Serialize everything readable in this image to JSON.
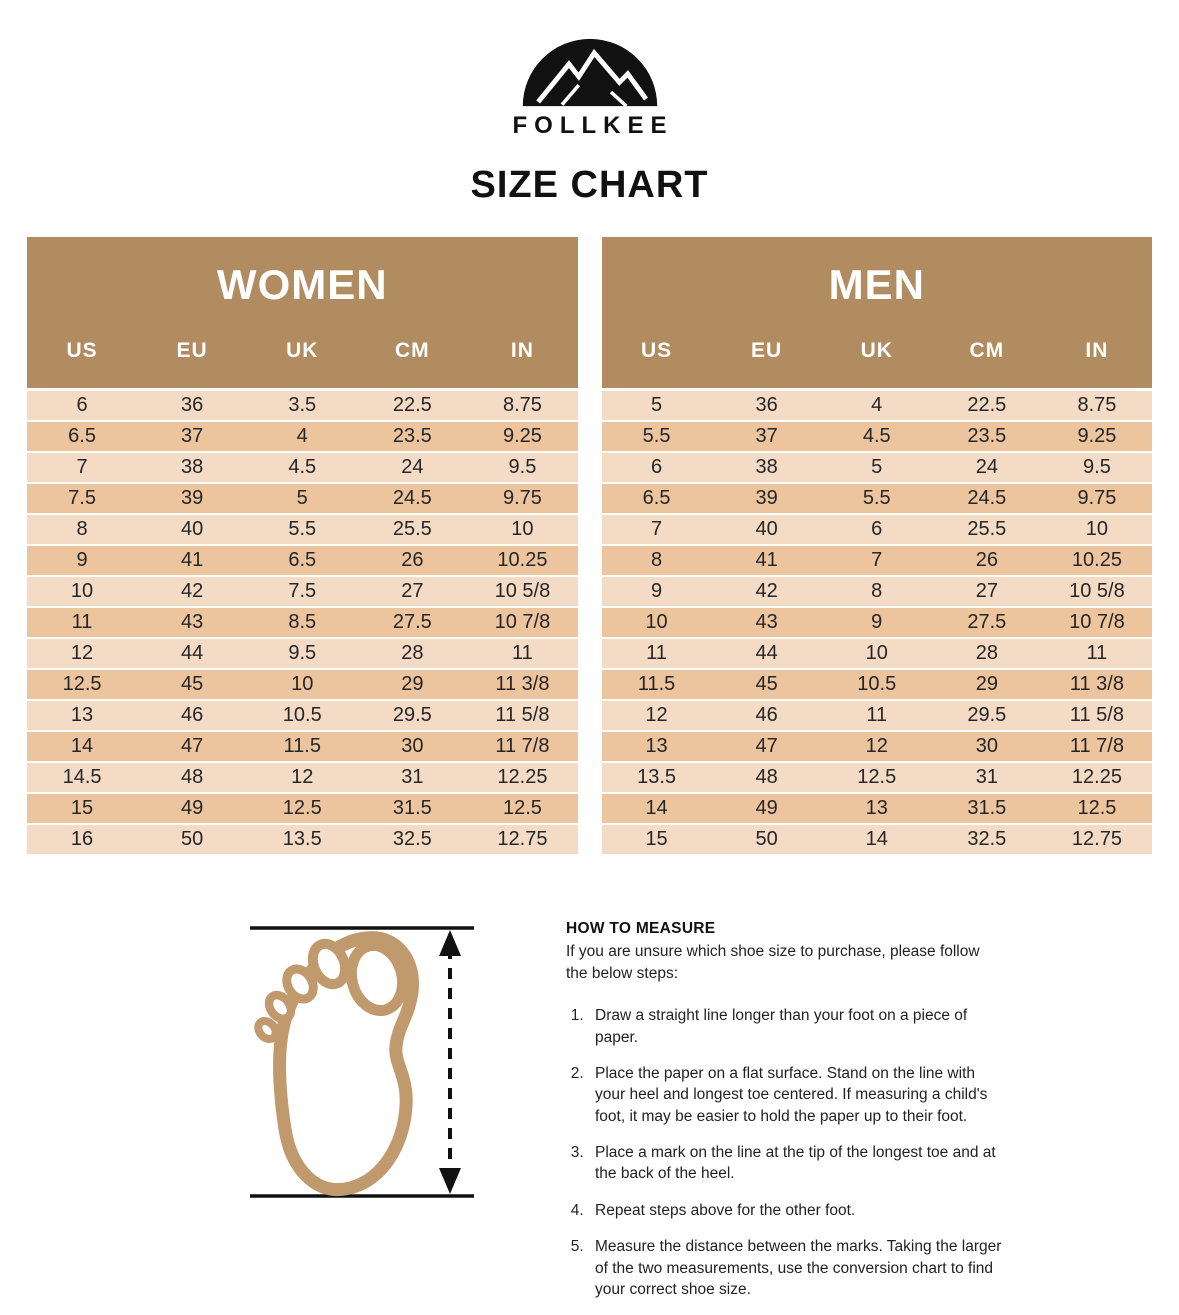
{
  "brand": {
    "name": "FOLLKEE",
    "logo_icon": "mountain-dome-logo"
  },
  "page_title": "SIZE CHART",
  "tables": [
    {
      "id": "women",
      "title": "WOMEN",
      "columns": [
        "US",
        "EU",
        "UK",
        "CM",
        "IN"
      ],
      "rows": [
        [
          "6",
          "36",
          "3.5",
          "22.5",
          "8.75"
        ],
        [
          "6.5",
          "37",
          "4",
          "23.5",
          "9.25"
        ],
        [
          "7",
          "38",
          "4.5",
          "24",
          "9.5"
        ],
        [
          "7.5",
          "39",
          "5",
          "24.5",
          "9.75"
        ],
        [
          "8",
          "40",
          "5.5",
          "25.5",
          "10"
        ],
        [
          "9",
          "41",
          "6.5",
          "26",
          "10.25"
        ],
        [
          "10",
          "42",
          "7.5",
          "27",
          "10 5/8"
        ],
        [
          "11",
          "43",
          "8.5",
          "27.5",
          "10 7/8"
        ],
        [
          "12",
          "44",
          "9.5",
          "28",
          "11"
        ],
        [
          "12.5",
          "45",
          "10",
          "29",
          "11 3/8"
        ],
        [
          "13",
          "46",
          "10.5",
          "29.5",
          "11 5/8"
        ],
        [
          "14",
          "47",
          "11.5",
          "30",
          "11 7/8"
        ],
        [
          "14.5",
          "48",
          "12",
          "31",
          "12.25"
        ],
        [
          "15",
          "49",
          "12.5",
          "31.5",
          "12.5"
        ],
        [
          "16",
          "50",
          "13.5",
          "32.5",
          "12.75"
        ]
      ]
    },
    {
      "id": "men",
      "title": "MEN",
      "columns": [
        "US",
        "EU",
        "UK",
        "CM",
        "IN"
      ],
      "rows": [
        [
          "5",
          "36",
          "4",
          "22.5",
          "8.75"
        ],
        [
          "5.5",
          "37",
          "4.5",
          "23.5",
          "9.25"
        ],
        [
          "6",
          "38",
          "5",
          "24",
          "9.5"
        ],
        [
          "6.5",
          "39",
          "5.5",
          "24.5",
          "9.75"
        ],
        [
          "7",
          "40",
          "6",
          "25.5",
          "10"
        ],
        [
          "8",
          "41",
          "7",
          "26",
          "10.25"
        ],
        [
          "9",
          "42",
          "8",
          "27",
          "10 5/8"
        ],
        [
          "10",
          "43",
          "9",
          "27.5",
          "10 7/8"
        ],
        [
          "11",
          "44",
          "10",
          "28",
          "11"
        ],
        [
          "11.5",
          "45",
          "10.5",
          "29",
          "11 3/8"
        ],
        [
          "12",
          "46",
          "11",
          "29.5",
          "11 5/8"
        ],
        [
          "13",
          "47",
          "12",
          "30",
          "11 7/8"
        ],
        [
          "13.5",
          "48",
          "12.5",
          "31",
          "12.25"
        ],
        [
          "14",
          "49",
          "13",
          "31.5",
          "12.5"
        ],
        [
          "15",
          "50",
          "14",
          "32.5",
          "12.75"
        ]
      ]
    }
  ],
  "how_to_measure": {
    "title": "HOW TO MEASURE",
    "intro": "If you are unsure which shoe size to purchase, please follow the below steps:",
    "steps": [
      "Draw a straight line longer than your foot on a piece of paper.",
      "Place the paper on a flat surface. Stand on the line with your heel and longest toe centered. If measuring a child's foot, it may be easier to hold the paper up to their foot.",
      "Place a mark on the line at the tip of the longest toe and at the back of the heel.",
      "Repeat steps above for the other foot.",
      "Measure the distance between the marks. Taking the larger of the two measurements, use the conversion chart to find your correct shoe size."
    ],
    "foot_icon": "footprint-measure-diagram"
  },
  "colors": {
    "header_brown": "#b18c61",
    "row_light": "#f4dbc5",
    "row_dark": "#ecc49e",
    "foot_tan": "#c09a6c",
    "ink_black": "#111111",
    "text_dark": "#262626"
  }
}
